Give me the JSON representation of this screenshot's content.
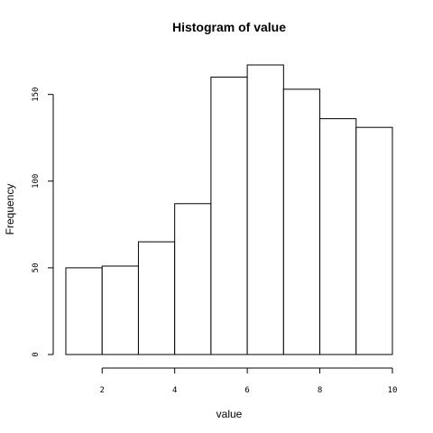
{
  "chart_data": {
    "type": "bar",
    "title": "Histogram of value",
    "xlabel": "value",
    "ylabel": "Frequency",
    "bins": [
      {
        "start": 1,
        "end": 2,
        "count": 50
      },
      {
        "start": 2,
        "end": 3,
        "count": 51
      },
      {
        "start": 3,
        "end": 4,
        "count": 65
      },
      {
        "start": 4,
        "end": 5,
        "count": 87
      },
      {
        "start": 5,
        "end": 6,
        "count": 160
      },
      {
        "start": 6,
        "end": 7,
        "count": 167
      },
      {
        "start": 7,
        "end": 8,
        "count": 153
      },
      {
        "start": 8,
        "end": 9,
        "count": 136
      },
      {
        "start": 9,
        "end": 10,
        "count": 131
      }
    ],
    "xlim": [
      1,
      10
    ],
    "ylim": [
      0,
      167
    ],
    "xticks": [
      2,
      4,
      6,
      8,
      10
    ],
    "yticks": [
      0,
      50,
      100,
      150
    ],
    "grid": false,
    "colors": {
      "bar_fill": "#ffffff",
      "bar_stroke": "#000000"
    }
  }
}
